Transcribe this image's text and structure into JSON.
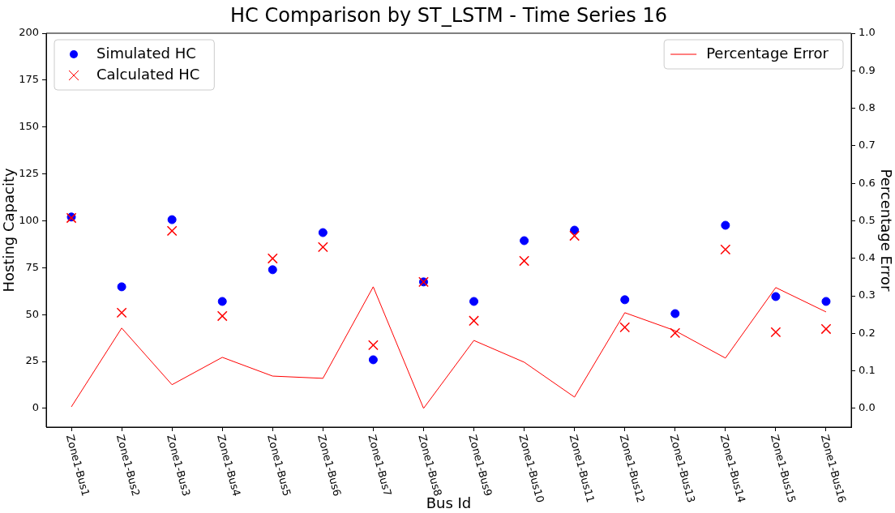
{
  "chart_data": {
    "type": "scatter",
    "title": "HC Comparison by ST_LSTM - Time Series 16",
    "xlabel": "Bus Id",
    "ylabel": "Hosting Capacity",
    "y2label": "Percentage Error",
    "categories": [
      "Zone1-Bus1",
      "Zone1-Bus2",
      "Zone1-Bus3",
      "Zone1-Bus4",
      "Zone1-Bus5",
      "Zone1-Bus6",
      "Zone1-Bus7",
      "Zone1-Bus8",
      "Zone1-Bus9",
      "Zone1-Bus10",
      "Zone1-Bus11",
      "Zone1-Bus12",
      "Zone1-Bus13",
      "Zone1-Bus14",
      "Zone1-Bus15",
      "Zone1-Bus16"
    ],
    "series": [
      {
        "name": "Simulated HC",
        "color": "#0000ff",
        "marker": "circle",
        "values": [
          102,
          64.8,
          100.6,
          57,
          73.9,
          93.7,
          25.9,
          67.4,
          57,
          89.4,
          95,
          57.9,
          50.5,
          97.6,
          59.6,
          57
        ]
      },
      {
        "name": "Calculated HC",
        "color": "#ff0000",
        "marker": "cross",
        "values": [
          101.5,
          51,
          94.6,
          49.2,
          79.9,
          86,
          33.7,
          67.4,
          46.7,
          78.6,
          92,
          43.2,
          40.2,
          84.7,
          40.6,
          42.3
        ]
      },
      {
        "name": "Percentage Error",
        "type": "line",
        "axis": "y2",
        "color": "#ff0000",
        "marker": "none",
        "values": [
          0.004,
          0.214,
          0.063,
          0.136,
          0.086,
          0.08,
          0.324,
          0.0,
          0.181,
          0.123,
          0.03,
          0.255,
          0.207,
          0.134,
          0.322,
          0.257
        ]
      }
    ],
    "ylim": [
      -10,
      200
    ],
    "yticks": [
      0,
      25,
      50,
      75,
      100,
      125,
      150,
      175,
      200
    ],
    "y2lim": [
      -0.05,
      1.0
    ],
    "y2ticks": [
      {
        "value": 0,
        "label": "0.0"
      },
      0.1,
      0.2,
      0.3,
      0.4,
      0.5,
      0.6,
      0.7,
      0.8,
      0.9,
      {
        "value": 1,
        "label": "1.0"
      }
    ],
    "grid": false,
    "legend": "top left"
  }
}
